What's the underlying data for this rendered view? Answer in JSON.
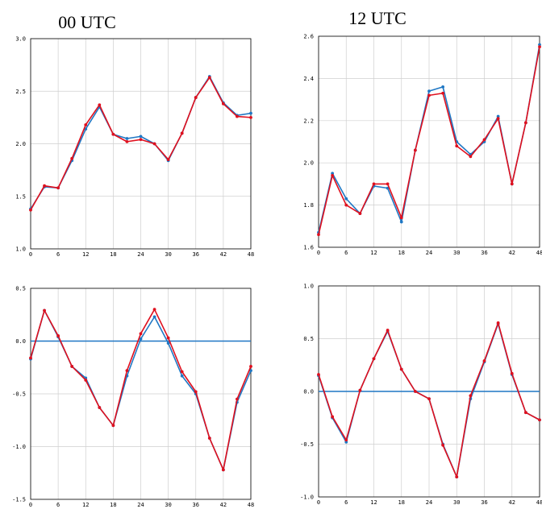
{
  "colors": {
    "blue": "#1f77c4",
    "red": "#e0101e"
  },
  "titles": {
    "left": "00 UTC",
    "right": "12 UTC"
  },
  "chart_data": [
    {
      "type": "line",
      "title": "00 UTC",
      "x": [
        0,
        3,
        6,
        9,
        12,
        15,
        18,
        21,
        24,
        27,
        30,
        33,
        36,
        39,
        42,
        45,
        48
      ],
      "xticks": [
        0,
        6,
        12,
        18,
        24,
        30,
        36,
        42,
        48
      ],
      "ylim": [
        1.0,
        3.0
      ],
      "yticks": [
        1.0,
        1.5,
        2.0,
        2.5,
        3.0
      ],
      "ytick_labels": [
        "1.0",
        "1.5",
        "2.0",
        "2.5",
        "3.0"
      ],
      "grid": true,
      "series": [
        {
          "color": "#1f77c4",
          "values": [
            1.38,
            1.59,
            1.58,
            1.84,
            2.14,
            2.35,
            2.09,
            2.05,
            2.07,
            2.0,
            1.84,
            2.1,
            2.44,
            2.64,
            2.39,
            2.27,
            2.29
          ]
        },
        {
          "color": "#e0101e",
          "values": [
            1.37,
            1.6,
            1.58,
            1.86,
            2.18,
            2.37,
            2.09,
            2.02,
            2.04,
            2.0,
            1.85,
            2.1,
            2.44,
            2.63,
            2.38,
            2.26,
            2.25
          ]
        }
      ]
    },
    {
      "type": "line",
      "title": "12 UTC",
      "x": [
        0,
        3,
        6,
        9,
        12,
        15,
        18,
        21,
        24,
        27,
        30,
        33,
        36,
        39,
        42,
        45,
        48
      ],
      "xticks": [
        0,
        6,
        12,
        18,
        24,
        30,
        36,
        42,
        48
      ],
      "ylim": [
        1.6,
        2.6
      ],
      "yticks": [
        1.6,
        1.8,
        2.0,
        2.2,
        2.4,
        2.6
      ],
      "ytick_labels": [
        "1.6",
        "1.8",
        "2.0",
        "2.2",
        "2.4",
        "2.6"
      ],
      "grid": true,
      "series": [
        {
          "color": "#1f77c4",
          "values": [
            1.67,
            1.95,
            1.83,
            1.76,
            1.89,
            1.88,
            1.72,
            2.06,
            2.34,
            2.36,
            2.1,
            2.04,
            2.1,
            2.22,
            1.9,
            2.19,
            2.56
          ]
        },
        {
          "color": "#e0101e",
          "values": [
            1.66,
            1.94,
            1.8,
            1.76,
            1.9,
            1.9,
            1.74,
            2.06,
            2.32,
            2.33,
            2.08,
            2.03,
            2.11,
            2.21,
            1.9,
            2.19,
            2.55
          ]
        }
      ]
    },
    {
      "type": "line",
      "x": [
        0,
        3,
        6,
        9,
        12,
        15,
        18,
        21,
        24,
        27,
        30,
        33,
        36,
        39,
        42,
        45,
        48
      ],
      "xticks": [
        0,
        6,
        12,
        18,
        24,
        30,
        36,
        42,
        48
      ],
      "ylim": [
        -1.5,
        0.5
      ],
      "yticks": [
        -1.5,
        -1.0,
        -0.5,
        0.0,
        0.5
      ],
      "ytick_labels": [
        "-1.5",
        "-1.0",
        "-0.5",
        "0.0",
        "0.5"
      ],
      "grid": true,
      "reference_line": 0.0,
      "series": [
        {
          "color": "#1f77c4",
          "values": [
            -0.17,
            0.29,
            0.04,
            -0.24,
            -0.35,
            -0.63,
            -0.8,
            -0.33,
            0.02,
            0.23,
            -0.02,
            -0.33,
            -0.5,
            -0.92,
            -1.22,
            -0.58,
            -0.28
          ]
        },
        {
          "color": "#e0101e",
          "values": [
            -0.16,
            0.29,
            0.05,
            -0.24,
            -0.37,
            -0.63,
            -0.8,
            -0.28,
            0.07,
            0.3,
            0.03,
            -0.29,
            -0.48,
            -0.92,
            -1.22,
            -0.55,
            -0.24
          ]
        }
      ]
    },
    {
      "type": "line",
      "x": [
        0,
        3,
        6,
        9,
        12,
        15,
        18,
        21,
        24,
        27,
        30,
        33,
        36,
        39,
        42,
        45,
        48
      ],
      "xticks": [
        0,
        6,
        12,
        18,
        24,
        30,
        36,
        42,
        48
      ],
      "ylim": [
        -1.0,
        1.0
      ],
      "yticks": [
        -1.0,
        -0.5,
        0.0,
        0.5,
        1.0
      ],
      "ytick_labels": [
        "-1.0",
        "-0.5",
        "0.0",
        "0.5",
        "1.0"
      ],
      "grid": true,
      "reference_line": 0.0,
      "series": [
        {
          "color": "#1f77c4",
          "values": [
            0.15,
            -0.25,
            -0.48,
            0.01,
            0.31,
            0.57,
            0.21,
            0.0,
            -0.07,
            -0.5,
            -0.81,
            -0.07,
            0.28,
            0.64,
            0.16,
            -0.2,
            -0.27
          ]
        },
        {
          "color": "#e0101e",
          "values": [
            0.16,
            -0.24,
            -0.46,
            0.01,
            0.31,
            0.58,
            0.21,
            0.0,
            -0.07,
            -0.51,
            -0.81,
            -0.04,
            0.29,
            0.65,
            0.17,
            -0.2,
            -0.27
          ]
        }
      ]
    }
  ]
}
